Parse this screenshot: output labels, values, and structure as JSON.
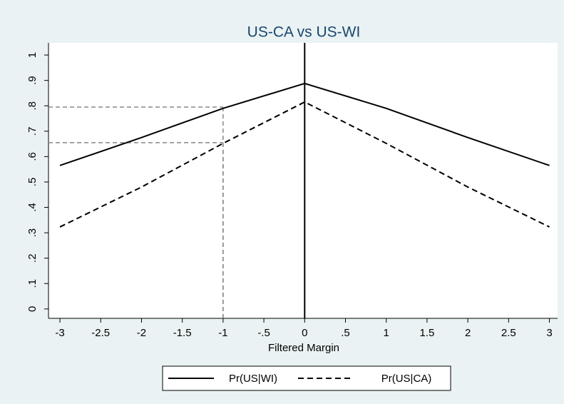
{
  "chart_data": {
    "type": "line",
    "title": "US-CA vs US-WI",
    "x_label": "Filtered Margin",
    "x": [
      -3,
      -2,
      -1,
      0,
      1,
      2,
      3
    ],
    "series": [
      {
        "name": "Pr(US|WI)",
        "color": "#000000",
        "dash": "solid",
        "values": [
          0.565,
          0.675,
          0.79,
          0.888,
          0.79,
          0.675,
          0.565
        ]
      },
      {
        "name": "Pr(US|CA)",
        "color": "#000000",
        "dash": "dashed",
        "values": [
          0.323,
          0.48,
          0.652,
          0.815,
          0.652,
          0.48,
          0.323
        ]
      }
    ],
    "xlim": [
      -3.14,
      3.1
    ],
    "ylim": [
      -0.037,
      1.048
    ],
    "xticks": [
      -3,
      -2.5,
      -2,
      -1.5,
      -1,
      {
        "value": -0.5,
        "label": "-.5"
      },
      0,
      {
        "value": 0.5,
        "label": ".5"
      },
      1,
      1.5,
      2,
      2.5,
      3
    ],
    "yticks": [
      0,
      {
        "value": 0.1,
        "label": ".1"
      },
      {
        "value": 0.2,
        "label": ".2"
      },
      {
        "value": 0.3,
        "label": ".3"
      },
      {
        "value": 0.4,
        "label": ".4"
      },
      {
        "value": 0.5,
        "label": ".5"
      },
      {
        "value": 0.6,
        "label": ".6"
      },
      {
        "value": 0.7,
        "label": ".7"
      },
      {
        "value": 0.8,
        "label": ".8"
      },
      {
        "value": 0.9,
        "label": ".9"
      },
      1
    ],
    "xline": 0,
    "drop_lines": [
      {
        "x": -1,
        "y": 0.795
      },
      {
        "x": -1,
        "y": 0.655
      }
    ],
    "drop_line_color": "#888888",
    "legend": "bottom"
  }
}
